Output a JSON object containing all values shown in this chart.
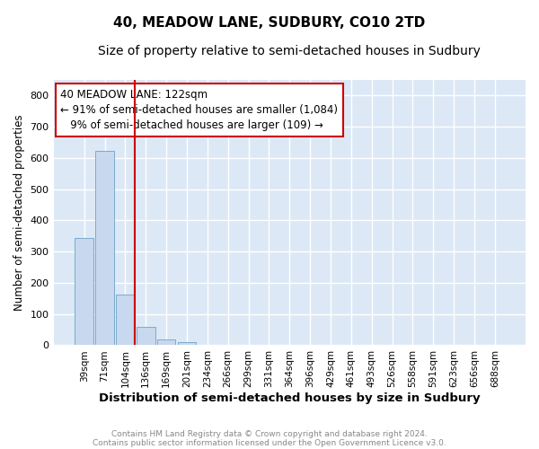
{
  "title": "40, MEADOW LANE, SUDBURY, CO10 2TD",
  "subtitle": "Size of property relative to semi-detached houses in Sudbury",
  "xlabel": "Distribution of semi-detached houses by size in Sudbury",
  "ylabel": "Number of semi-detached properties",
  "footnote1": "Contains HM Land Registry data © Crown copyright and database right 2024.",
  "footnote2": "Contains public sector information licensed under the Open Government Licence v3.0.",
  "categories": [
    "39sqm",
    "71sqm",
    "104sqm",
    "136sqm",
    "169sqm",
    "201sqm",
    "234sqm",
    "266sqm",
    "299sqm",
    "331sqm",
    "364sqm",
    "396sqm",
    "429sqm",
    "461sqm",
    "493sqm",
    "526sqm",
    "558sqm",
    "591sqm",
    "623sqm",
    "656sqm",
    "688sqm"
  ],
  "values": [
    343,
    622,
    163,
    58,
    18,
    10,
    0,
    0,
    0,
    0,
    0,
    0,
    0,
    0,
    0,
    0,
    0,
    0,
    0,
    0,
    0
  ],
  "bar_color": "#c8d8ee",
  "bar_edge_color": "#7aabcc",
  "vline_color": "#cc0000",
  "annotation_line1": "40 MEADOW LANE: 122sqm",
  "annotation_line2": "← 91% of semi-detached houses are smaller (1,084)",
  "annotation_line3": "   9% of semi-detached houses are larger (109) →",
  "annotation_box_color": "#ffffff",
  "annotation_box_edge_color": "#cc0000",
  "ylim": [
    0,
    850
  ],
  "yticks": [
    0,
    100,
    200,
    300,
    400,
    500,
    600,
    700,
    800
  ],
  "plot_bg_color": "#dce8f5",
  "title_fontsize": 11,
  "subtitle_fontsize": 10
}
